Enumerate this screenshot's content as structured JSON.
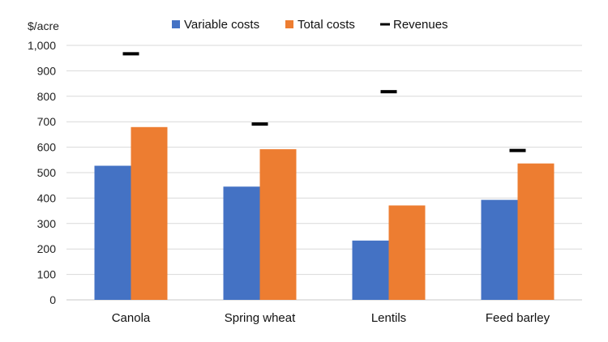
{
  "chart_data": {
    "type": "bar",
    "title": "",
    "xlabel": "",
    "ylabel": "$/acre",
    "ylim": [
      0,
      1000
    ],
    "yticks": [
      0,
      100,
      200,
      300,
      400,
      500,
      600,
      700,
      800,
      900,
      1000
    ],
    "ytick_labels": [
      "0",
      "100",
      "200",
      "300",
      "400",
      "500",
      "600",
      "700",
      "800",
      "900",
      "1,000"
    ],
    "grid": true,
    "legend_position": "top",
    "categories": [
      "Canola",
      "Spring wheat",
      "Lentils",
      "Feed barley"
    ],
    "series": [
      {
        "name": "Variable costs",
        "kind": "bar",
        "color": "#4472C4",
        "values": [
          527,
          445,
          233,
          393
        ]
      },
      {
        "name": "Total costs",
        "kind": "bar",
        "color": "#ED7D31",
        "values": [
          679,
          592,
          371,
          536
        ]
      },
      {
        "name": "Revenues",
        "kind": "marker",
        "color": "#000000",
        "values": [
          967,
          691,
          818,
          587
        ]
      }
    ]
  }
}
